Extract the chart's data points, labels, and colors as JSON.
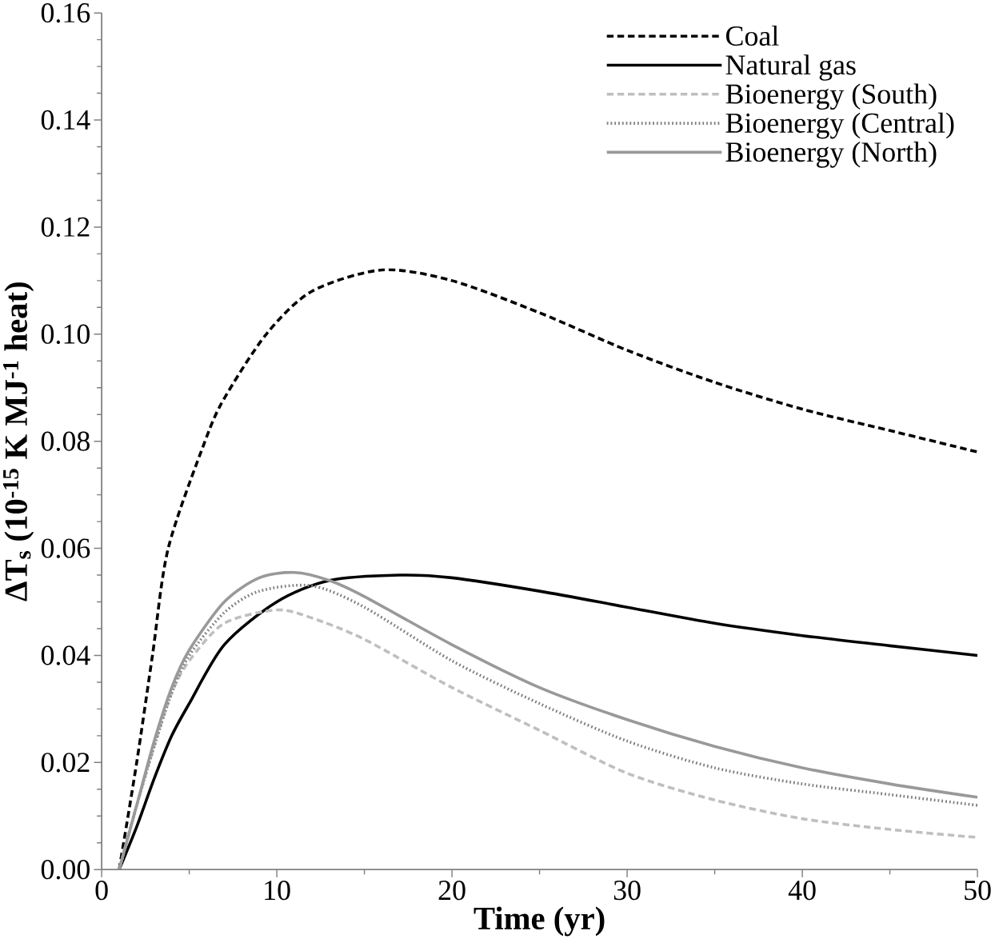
{
  "chart_data": {
    "type": "line",
    "xlabel": "Time (yr)",
    "ylabel": "ΔT$_{s}$ (10$^{-15}$ K MJ$^{-1}$ heat)",
    "xlim": [
      0,
      50
    ],
    "xticks": [
      0,
      10,
      20,
      30,
      40,
      50
    ],
    "ylim": [
      0,
      0.16
    ],
    "yticks": [
      {
        "value": 0,
        "label": "0.00"
      },
      {
        "value": 0.02,
        "label": "0.02"
      },
      {
        "value": 0.04,
        "label": "0.04"
      },
      {
        "value": 0.06,
        "label": "0.06"
      },
      {
        "value": 0.08,
        "label": "0.08"
      },
      {
        "value": 0.1,
        "label": "0.10"
      },
      {
        "value": 0.12,
        "label": "0.12"
      },
      {
        "value": 0.14,
        "label": "0.14"
      },
      {
        "value": 0.16,
        "label": "0.16"
      }
    ],
    "grid": false,
    "legend": "top right",
    "marker": "none",
    "series": [
      {
        "name": "Coal",
        "color": "#000000",
        "line_style": "dashed",
        "x": [
          1,
          2,
          2.9,
          3.8,
          5.9,
          7,
          9.4,
          12,
          16,
          20,
          25,
          30,
          35,
          40,
          45,
          50
        ],
        "values": [
          0,
          0.02,
          0.04,
          0.06,
          0.08,
          0.088,
          0.1,
          0.108,
          0.112,
          0.11,
          0.104,
          0.097,
          0.091,
          0.086,
          0.082,
          0.078
        ]
      },
      {
        "name": "Natural gas",
        "color": "#000000",
        "line_style": "solid",
        "x": [
          1,
          2,
          3,
          4,
          5,
          7,
          10,
          13,
          17,
          20,
          25,
          30,
          35,
          40,
          45,
          50
        ],
        "values": [
          0,
          0.008,
          0.017,
          0.025,
          0.031,
          0.042,
          0.05,
          0.054,
          0.055,
          0.0545,
          0.052,
          0.049,
          0.046,
          0.0437,
          0.0418,
          0.04
        ]
      },
      {
        "name": "Bioenergy (South)",
        "color": "#bfbfbf",
        "line_style": "dashed",
        "x": [
          1,
          2,
          3,
          4,
          5,
          7,
          10,
          12,
          15,
          20,
          25,
          30,
          35,
          40,
          45,
          50
        ],
        "values": [
          0,
          0.012,
          0.023,
          0.033,
          0.039,
          0.046,
          0.0485,
          0.047,
          0.043,
          0.034,
          0.026,
          0.018,
          0.013,
          0.0095,
          0.0075,
          0.006
        ]
      },
      {
        "name": "Bioenergy (Central)",
        "color": "#808080",
        "line_style": "dotted",
        "x": [
          1,
          2,
          3,
          4,
          5,
          7,
          9,
          12,
          15,
          20,
          25,
          30,
          35,
          40,
          45,
          50
        ],
        "values": [
          0,
          0.012,
          0.023,
          0.033,
          0.04,
          0.048,
          0.052,
          0.053,
          0.049,
          0.039,
          0.031,
          0.024,
          0.019,
          0.016,
          0.014,
          0.012
        ]
      },
      {
        "name": "Bioenergy (North)",
        "color": "#999999",
        "line_style": "solid",
        "x": [
          1,
          2,
          3,
          4,
          5,
          7,
          9,
          11,
          13,
          15,
          20,
          25,
          30,
          35,
          40,
          45,
          50
        ],
        "values": [
          0,
          0.012,
          0.024,
          0.034,
          0.041,
          0.05,
          0.0545,
          0.0555,
          0.054,
          0.051,
          0.042,
          0.034,
          0.028,
          0.023,
          0.019,
          0.016,
          0.0135
        ]
      }
    ]
  }
}
